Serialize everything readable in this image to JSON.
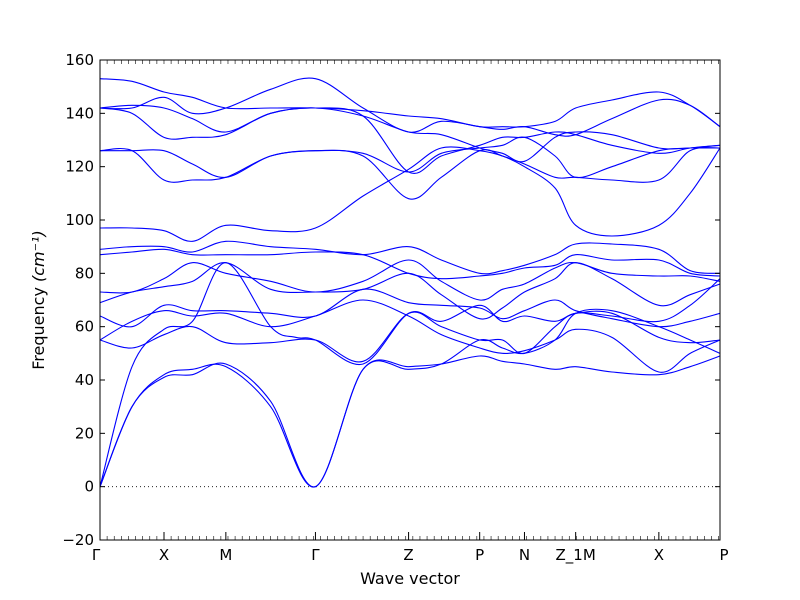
{
  "chart_data": {
    "type": "line",
    "xlabel": "Wave vector",
    "ylabel": "Frequency",
    "ylabel_unit": "(cm⁻¹)",
    "ylim": [
      -20,
      160
    ],
    "yticks": [
      -20,
      0,
      20,
      40,
      60,
      80,
      100,
      120,
      140,
      160
    ],
    "xlim": [
      0,
      8.72
    ],
    "xticks": [
      {
        "x": 0.0,
        "label": "Γ"
      },
      {
        "x": 0.9,
        "label": "X"
      },
      {
        "x": 1.77,
        "label": "M"
      },
      {
        "x": 3.03,
        "label": "Γ"
      },
      {
        "x": 4.34,
        "label": "Z"
      },
      {
        "x": 5.34,
        "label": "P"
      },
      {
        "x": 5.97,
        "label": "N"
      },
      {
        "x": 6.69,
        "label": "Z_1M"
      },
      {
        "x": 7.86,
        "label": "X"
      },
      {
        "x": 8.72,
        "label": "P"
      }
    ],
    "zero_line": {
      "y": 0,
      "style": "dotted"
    },
    "line_color": "#0000ff",
    "series": [
      {
        "x": [
          0,
          0.45,
          0.9,
          1.3,
          1.77,
          2.4,
          3.03,
          3.7,
          4.34,
          4.8,
          5.34,
          5.66,
          5.97,
          6.4,
          6.69,
          7.2,
          7.86,
          8.3,
          8.72
        ],
        "values": [
          0,
          30,
          42,
          44,
          45,
          30,
          0,
          44,
          45,
          46,
          49,
          47,
          46,
          44,
          45,
          43,
          42,
          45,
          49
        ]
      },
      {
        "x": [
          0,
          0.45,
          0.9,
          1.3,
          1.77,
          2.4,
          3.03,
          3.7,
          4.34,
          4.8,
          5.34,
          5.66,
          5.97,
          6.4,
          6.69,
          7.2,
          7.86,
          8.3,
          8.72
        ],
        "values": [
          0,
          30,
          41,
          42,
          46,
          32,
          0,
          44,
          44,
          46,
          55,
          52,
          50,
          55,
          65,
          66,
          60,
          55,
          50
        ]
      },
      {
        "x": [
          0,
          0.45,
          0.9,
          1.3,
          1.77,
          2.4,
          2.75,
          3.03,
          3.7,
          4.34,
          4.8,
          5.34,
          5.66,
          5.97,
          6.4,
          6.69,
          7.2,
          7.86,
          8.3,
          8.72
        ],
        "values": [
          0,
          45,
          59,
          62,
          84,
          60,
          56,
          55,
          46,
          65,
          62,
          68,
          62,
          64,
          62,
          65,
          65,
          56,
          54,
          55
        ]
      },
      {
        "x": [
          0,
          0.45,
          0.9,
          1.3,
          1.77,
          2.4,
          3.03,
          3.7,
          4.34,
          4.8,
          5.34,
          5.66,
          5.97,
          6.4,
          6.69,
          7.2,
          7.86,
          8.3,
          8.72
        ],
        "values": [
          55,
          52,
          57,
          60,
          54,
          54,
          55,
          47,
          65,
          60,
          55,
          55,
          50,
          60,
          65,
          64,
          62,
          68,
          78
        ]
      },
      {
        "x": [
          0,
          0.45,
          0.9,
          1.3,
          1.77,
          2.4,
          3.03,
          3.7,
          4.34,
          4.8,
          5.34,
          5.66,
          5.97,
          6.4,
          6.69,
          7.2,
          7.86,
          8.3,
          8.72
        ],
        "values": [
          55,
          62,
          66,
          64,
          65,
          60,
          64,
          70,
          64,
          57,
          52,
          50,
          51,
          55,
          59,
          56,
          43,
          50,
          55
        ]
      },
      {
        "x": [
          0,
          0.45,
          0.9,
          1.3,
          1.77,
          2.4,
          3.03,
          3.7,
          4.34,
          4.8,
          5.34,
          5.66,
          5.97,
          6.4,
          6.69,
          7.2,
          7.86,
          8.3,
          8.72
        ],
        "values": [
          64,
          60,
          68,
          66,
          66,
          65,
          64,
          74,
          69,
          68,
          67,
          63,
          66,
          70,
          66,
          63,
          60,
          62,
          65
        ]
      },
      {
        "x": [
          0,
          0.45,
          0.9,
          1.3,
          1.77,
          2.4,
          3.03,
          3.7,
          4.34,
          4.8,
          5.34,
          5.66,
          5.97,
          6.4,
          6.69,
          7.2,
          7.86,
          8.3,
          8.72
        ],
        "values": [
          69,
          73,
          75,
          77,
          84,
          74,
          73,
          74,
          80,
          72,
          63,
          67,
          73,
          78,
          84,
          78,
          68,
          72,
          76
        ]
      },
      {
        "x": [
          0,
          0.45,
          0.9,
          1.3,
          1.77,
          2.4,
          3.03,
          3.7,
          4.34,
          4.8,
          5.34,
          5.66,
          5.97,
          6.4,
          6.69,
          7.2,
          7.86,
          8.3,
          8.72
        ],
        "values": [
          73,
          73,
          78,
          84,
          80,
          77,
          73,
          77,
          85,
          77,
          70,
          74,
          76,
          82,
          84,
          80,
          79,
          79,
          77
        ]
      },
      {
        "x": [
          0,
          0.45,
          0.9,
          1.3,
          1.77,
          2.4,
          3.03,
          3.7,
          4.34,
          4.8,
          5.34,
          5.66,
          5.97,
          6.4,
          6.69,
          7.2,
          7.86,
          8.3,
          8.72
        ],
        "values": [
          87,
          88,
          89,
          87,
          87,
          87,
          88,
          87,
          80,
          78,
          79,
          80,
          82,
          83,
          87,
          85,
          85,
          80,
          79
        ]
      },
      {
        "x": [
          0,
          0.45,
          0.9,
          1.3,
          1.77,
          2.4,
          3.03,
          3.7,
          4.34,
          4.8,
          5.34,
          5.66,
          5.97,
          6.4,
          6.69,
          7.2,
          7.86,
          8.3,
          8.72
        ],
        "values": [
          89,
          90,
          90,
          88,
          92,
          90,
          89,
          87,
          90,
          85,
          80,
          81,
          83,
          87,
          91,
          91,
          89,
          81,
          80
        ]
      },
      {
        "x": [
          0,
          0.45,
          0.9,
          1.3,
          1.77,
          2.4,
          3.03,
          3.7,
          4.34,
          4.8,
          5.34,
          5.66,
          5.97,
          6.4,
          6.69,
          7.2,
          7.86,
          8.3,
          8.72
        ],
        "values": [
          97,
          97,
          96,
          92,
          98,
          96,
          97,
          109,
          119,
          127,
          126,
          124,
          120,
          112,
          98,
          94,
          98,
          110,
          127
        ]
      },
      {
        "x": [
          0,
          0.45,
          0.9,
          1.3,
          1.77,
          2.4,
          3.03,
          3.7,
          4.34,
          4.8,
          5.34,
          5.66,
          5.97,
          6.4,
          6.69,
          7.2,
          7.86,
          8.3,
          8.72
        ],
        "values": [
          126,
          126,
          115,
          115,
          116,
          124,
          126,
          124,
          108,
          116,
          126,
          124,
          121,
          116,
          116,
          115,
          115,
          126,
          127
        ]
      },
      {
        "x": [
          0,
          0.45,
          0.9,
          1.3,
          1.77,
          2.4,
          3.03,
          3.7,
          4.34,
          4.8,
          5.34,
          5.66,
          5.97,
          6.4,
          6.69,
          7.2,
          7.86,
          8.3,
          8.72
        ],
        "values": [
          126,
          126,
          126,
          121,
          116,
          124,
          126,
          125,
          118,
          125,
          127,
          128,
          131,
          124,
          116,
          120,
          126,
          127,
          128
        ]
      },
      {
        "x": [
          0,
          0.45,
          0.9,
          1.3,
          1.77,
          2.4,
          3.03,
          3.7,
          4.34,
          4.8,
          5.34,
          5.66,
          5.97,
          6.4,
          6.69,
          7.2,
          7.86,
          8.3,
          8.72
        ],
        "values": [
          142,
          140,
          131,
          131,
          132,
          140,
          142,
          139,
          118,
          124,
          128,
          131,
          131,
          133,
          132,
          128,
          125,
          127,
          128
        ]
      },
      {
        "x": [
          0,
          0.45,
          0.9,
          1.3,
          1.77,
          2.4,
          3.03,
          3.7,
          4.34,
          4.8,
          5.34,
          5.66,
          5.97,
          6.4,
          6.69,
          7.2,
          7.86,
          8.3,
          8.72
        ],
        "values": [
          142,
          143,
          142,
          138,
          133,
          140,
          142,
          139,
          133,
          132,
          127,
          125,
          122,
          131,
          133,
          132,
          127,
          127,
          127
        ]
      },
      {
        "x": [
          0,
          0.45,
          0.9,
          1.3,
          1.77,
          2.4,
          3.03,
          3.7,
          4.34,
          4.8,
          5.34,
          5.66,
          5.97,
          6.4,
          6.69,
          7.2,
          7.86,
          8.3,
          8.72
        ],
        "values": [
          142,
          142,
          146,
          140,
          142,
          149,
          153,
          142,
          133,
          137,
          135,
          134,
          135,
          132,
          132,
          138,
          145,
          143,
          135
        ]
      },
      {
        "x": [
          0,
          0.45,
          0.9,
          1.3,
          1.77,
          2.4,
          3.03,
          3.7,
          4.34,
          4.8,
          5.34,
          5.66,
          5.97,
          6.4,
          6.69,
          7.2,
          7.86,
          8.3,
          8.72
        ],
        "values": [
          153,
          152,
          148,
          146,
          142,
          142,
          142,
          141,
          139,
          138,
          135,
          135,
          135,
          137,
          142,
          145,
          148,
          143,
          135
        ]
      }
    ]
  }
}
